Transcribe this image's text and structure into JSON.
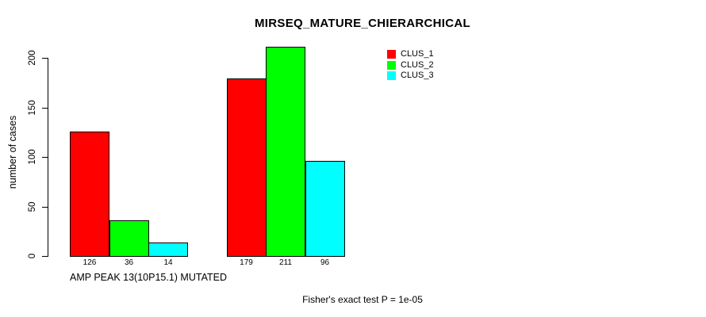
{
  "chart_data": {
    "type": "bar",
    "title": "MIRSEQ_MATURE_CHIERARCHICAL",
    "ylabel": "number of cases",
    "xlabel": "",
    "ylim": [
      0,
      220
    ],
    "yticks": [
      0,
      50,
      100,
      150,
      200
    ],
    "grid": false,
    "legend_position": "top-right-inside",
    "categories": [
      "AMP PEAK 13(10P15.1) MUTATED",
      ""
    ],
    "series": [
      {
        "name": "CLUS_1",
        "color": "#FF0000",
        "values": [
          126,
          179
        ]
      },
      {
        "name": "CLUS_2",
        "color": "#00FF00",
        "values": [
          36,
          211
        ]
      },
      {
        "name": "CLUS_3",
        "color": "#00FFFF",
        "values": [
          14,
          96
        ]
      }
    ],
    "bar_value_labels": [
      [
        126,
        36,
        14
      ],
      [
        179,
        211,
        96
      ]
    ],
    "footnote": "Fisher's exact test P = 1e-05"
  }
}
